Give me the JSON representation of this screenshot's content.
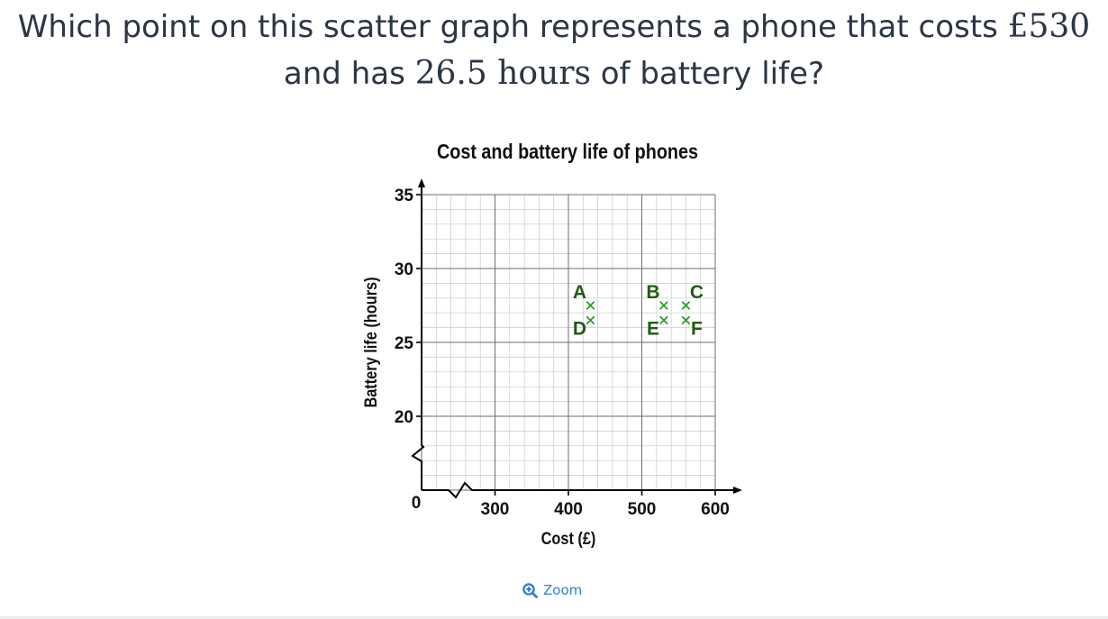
{
  "question": {
    "part1": "Which point on this scatter graph represents a phone that costs ",
    "cost": "£530",
    "part2": "and has ",
    "hours": "26.5 hours",
    "part3": " of battery life?"
  },
  "zoom": {
    "label": "Zoom",
    "icon": "zoom-in-icon"
  },
  "chart_data": {
    "type": "scatter",
    "title": "Cost and battery life of phones",
    "xlabel": "Cost (£)",
    "ylabel": "Battery life (hours)",
    "xlim": [
      200,
      600
    ],
    "ylim": [
      15,
      35
    ],
    "x_ticks": [
      300,
      400,
      500,
      600
    ],
    "y_ticks": [
      20,
      25,
      30,
      35
    ],
    "origin_label": "0",
    "axis_breaks": true,
    "grid": true,
    "marker": "x",
    "point_color": "#2a9d2a",
    "label_color": "#1f5c12",
    "points": [
      {
        "label": "A",
        "x": 430,
        "y": 27.5
      },
      {
        "label": "D",
        "x": 430,
        "y": 26.5
      },
      {
        "label": "B",
        "x": 530,
        "y": 27.5
      },
      {
        "label": "E",
        "x": 530,
        "y": 26.5
      },
      {
        "label": "C",
        "x": 560,
        "y": 27.5
      },
      {
        "label": "F",
        "x": 560,
        "y": 26.5
      }
    ]
  }
}
